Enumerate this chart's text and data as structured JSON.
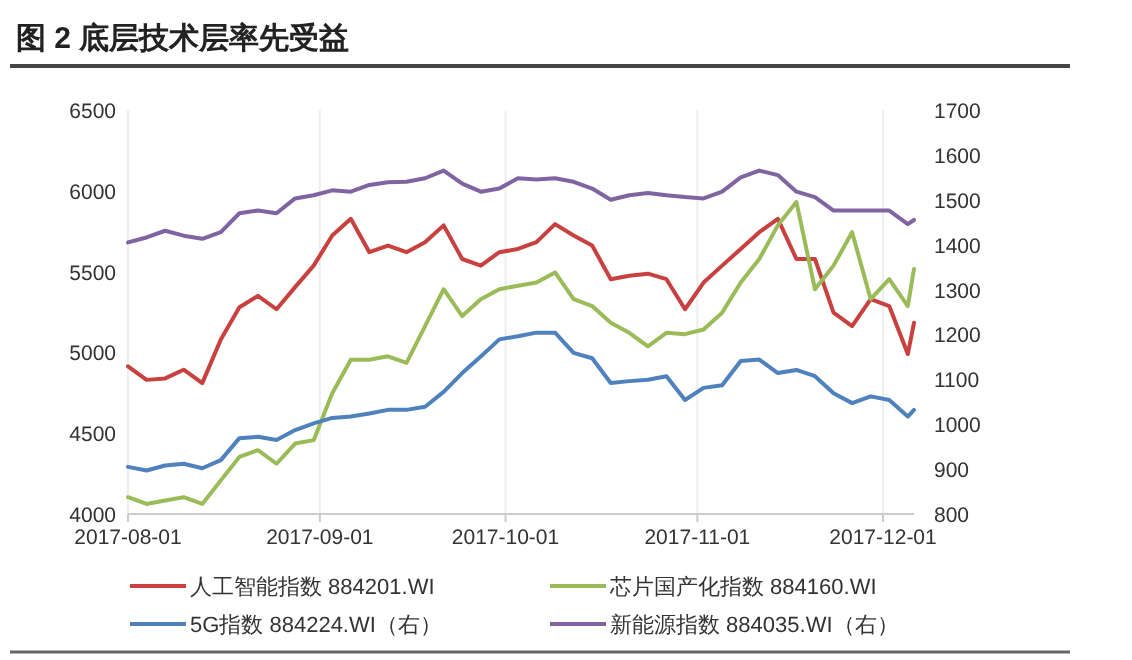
{
  "chart_data": {
    "type": "line",
    "title": "图 2 底层技术层率先受益",
    "x": [
      "2017-08-01",
      "2017-08-04",
      "2017-08-07",
      "2017-08-10",
      "2017-08-13",
      "2017-08-16",
      "2017-08-19",
      "2017-08-22",
      "2017-08-25",
      "2017-08-28",
      "2017-08-31",
      "2017-09-03",
      "2017-09-06",
      "2017-09-09",
      "2017-09-12",
      "2017-09-15",
      "2017-09-18",
      "2017-09-21",
      "2017-09-24",
      "2017-09-27",
      "2017-09-30",
      "2017-10-03",
      "2017-10-06",
      "2017-10-09",
      "2017-10-12",
      "2017-10-15",
      "2017-10-18",
      "2017-10-21",
      "2017-10-24",
      "2017-10-27",
      "2017-10-30",
      "2017-11-02",
      "2017-11-05",
      "2017-11-08",
      "2017-11-11",
      "2017-11-14",
      "2017-11-17",
      "2017-11-20",
      "2017-11-23",
      "2017-11-26",
      "2017-11-29",
      "2017-12-02",
      "2017-12-05",
      "2017-12-06"
    ],
    "series": [
      {
        "name": "人工智能指数 884201.WI",
        "color": "#c8413f",
        "values": [
          4914,
          4830,
          4839,
          4893,
          4810,
          5080,
          5279,
          5350,
          5267,
          5404,
          5537,
          5723,
          5827,
          5620,
          5661,
          5620,
          5682,
          5786,
          5578,
          5537,
          5620,
          5640,
          5682,
          5794,
          5723,
          5661,
          5453,
          5474,
          5487,
          5453,
          5267,
          5432,
          5537,
          5640,
          5744,
          5827,
          5578,
          5578,
          5246,
          5163,
          5329,
          5287,
          4990,
          5183
        ]
      },
      {
        "name": "芯片国产化指数 884160.WI",
        "color": "#9bbb59",
        "values": [
          4104,
          4062,
          4083,
          4104,
          4062,
          4208,
          4353,
          4395,
          4311,
          4436,
          4457,
          4747,
          4955,
          4955,
          4976,
          4935,
          5163,
          5391,
          5225,
          5329,
          5391,
          5412,
          5433,
          5495,
          5329,
          5287,
          5183,
          5121,
          5038,
          5121,
          5113,
          5142,
          5246,
          5433,
          5578,
          5786,
          5931,
          5391,
          5537,
          5744,
          5329,
          5453,
          5287,
          5516
        ]
      },
      {
        "name": "5G指数 884224.WI（右）",
        "color": "#4f81bd",
        "axis": "y2",
        "values": [
          905,
          897,
          908,
          912,
          902,
          920,
          969,
          972,
          965,
          987,
          1002,
          1014,
          1017,
          1024,
          1032,
          1032,
          1039,
          1072,
          1114,
          1151,
          1189,
          1196,
          1204,
          1204,
          1159,
          1147,
          1092,
          1096,
          1099,
          1107,
          1054,
          1081,
          1087,
          1141,
          1144,
          1114,
          1121,
          1107,
          1069,
          1047,
          1062,
          1054,
          1017,
          1032
        ]
      },
      {
        "name": "新能源指数 884035.WI（右）",
        "color": "#8064a2",
        "axis": "y2",
        "values": [
          1405,
          1416,
          1431,
          1420,
          1413,
          1428,
          1470,
          1476,
          1470,
          1503,
          1510,
          1521,
          1518,
          1533,
          1539,
          1540,
          1548,
          1565,
          1536,
          1518,
          1525,
          1548,
          1545,
          1548,
          1540,
          1525,
          1500,
          1510,
          1515,
          1510,
          1506,
          1503,
          1518,
          1550,
          1565,
          1555,
          1518,
          1506,
          1476,
          1476,
          1476,
          1476,
          1446,
          1455
        ]
      }
    ],
    "xlim": [
      "2017-08-01",
      "2017-12-06"
    ],
    "xticks": [
      {
        "value": "2017-08-01",
        "label": "2017-08-01"
      },
      {
        "value": "2017-09-01",
        "label": "2017-09-01"
      },
      {
        "value": "2017-10-01",
        "label": "2017-10-01"
      },
      {
        "value": "2017-11-01",
        "label": "2017-11-01"
      },
      {
        "value": "2017-12-01",
        "label": "2017-12-01"
      }
    ],
    "ylim": [
      4000,
      6500
    ],
    "yticks": [
      4000,
      4500,
      5000,
      5500,
      6000,
      6500
    ],
    "y2lim": [
      800,
      1700
    ],
    "y2ticks": [
      800,
      900,
      1000,
      1100,
      1200,
      1300,
      1400,
      1500,
      1600,
      1700
    ],
    "grid": "x",
    "legend": "bottom",
    "marker": "none",
    "line_style": "solid"
  }
}
